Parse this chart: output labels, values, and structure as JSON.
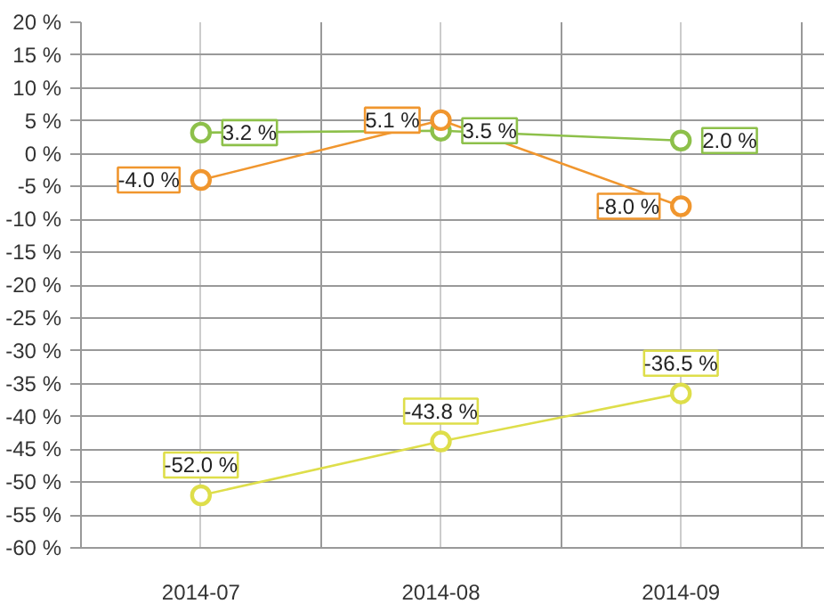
{
  "chart_data": {
    "type": "line",
    "categories": [
      "2014-07",
      "2014-08",
      "2014-09"
    ],
    "series": [
      {
        "color": "#8dc04a",
        "values": [
          3.2,
          3.5,
          2.0
        ],
        "value_labels": [
          "3.2 %",
          "3.5 %",
          "2.0 %"
        ]
      },
      {
        "color": "#f0962e",
        "values": [
          -4.0,
          5.1,
          -8.0
        ],
        "value_labels": [
          "-4.0 %",
          "5.1 %",
          "-8.0 %"
        ]
      },
      {
        "color": "#dede4a",
        "values": [
          -52.0,
          -43.8,
          -36.5
        ],
        "value_labels": [
          "-52.0 %",
          "-43.8 %",
          "-36.5 %"
        ]
      }
    ],
    "ylim": [
      -60,
      20
    ],
    "yticks": [
      {
        "value": 20,
        "label": "20 %"
      },
      {
        "value": 15,
        "label": "15 %"
      },
      {
        "value": 10,
        "label": "10 %"
      },
      {
        "value": 5,
        "label": "5 %"
      },
      {
        "value": 0,
        "label": "0 %"
      },
      {
        "value": -5,
        "label": "-5 %"
      },
      {
        "value": -10,
        "label": "-10 %"
      },
      {
        "value": -15,
        "label": "-15 %"
      },
      {
        "value": -20,
        "label": "-20 %"
      },
      {
        "value": -25,
        "label": "-25 %"
      },
      {
        "value": -30,
        "label": "-30 %"
      },
      {
        "value": -35,
        "label": "-35 %"
      },
      {
        "value": -40,
        "label": "-40 %"
      },
      {
        "value": -45,
        "label": "-45 %"
      },
      {
        "value": -50,
        "label": "-50 %"
      },
      {
        "value": -55,
        "label": "-55 %"
      },
      {
        "value": -60,
        "label": "-60 %"
      }
    ],
    "grid": true,
    "marker": "circle",
    "line_style": "solid"
  }
}
